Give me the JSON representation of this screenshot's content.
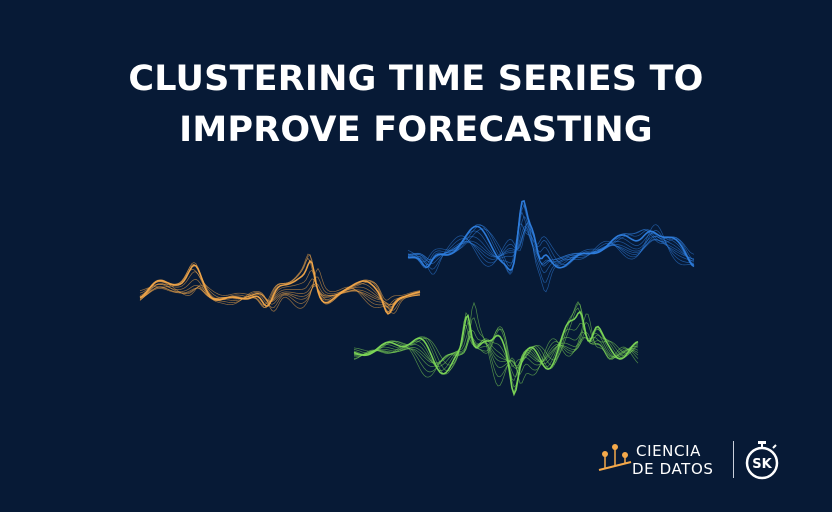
{
  "title": {
    "line1": "CLUSTERING TIME SERIES TO",
    "line2": "IMPROVE FORECASTING"
  },
  "colors": {
    "background": "#071a36",
    "orange": "#f5a94a",
    "blue": "#2f7fe0",
    "green": "#7ed957",
    "white": "#ffffff"
  },
  "logos": {
    "ciencia_line1": "CIENCIA",
    "ciencia_line2": "DE DATOS",
    "ciencia_icon": "data-points-icon",
    "skforecast_text": "SK",
    "skforecast_icon": "stopwatch-icon"
  }
}
